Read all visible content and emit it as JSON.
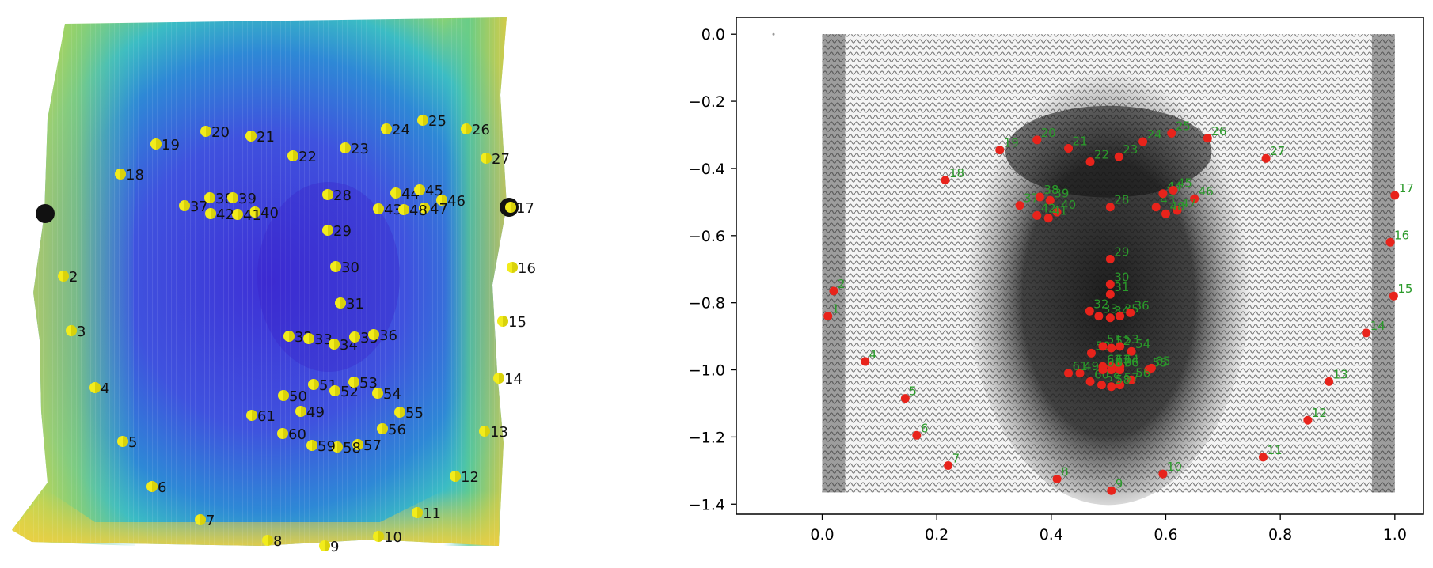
{
  "mesh_render": {
    "colors": {
      "center": "#3b3fd8",
      "mid": "#2f8fd8",
      "edge": "#3fc4c0",
      "outer": "#f4d83a",
      "marker_fill": "#f2ec1c",
      "marker_dark": "#111111"
    },
    "landmark_labels": [
      "2",
      "3",
      "4",
      "5",
      "6",
      "7",
      "8",
      "9",
      "10",
      "11",
      "12",
      "13",
      "14",
      "15",
      "16",
      "17",
      "18",
      "19",
      "20",
      "21",
      "22",
      "23",
      "24",
      "25",
      "26",
      "27",
      "28",
      "29",
      "30",
      "31",
      "32",
      "33",
      "34",
      "35",
      "36",
      "37",
      "38",
      "39",
      "40",
      "41",
      "42",
      "43",
      "44",
      "45",
      "46",
      "47",
      "48",
      "49",
      "50",
      "51",
      "52",
      "53",
      "54",
      "55",
      "56",
      "57",
      "58",
      "59",
      "60",
      "61"
    ]
  },
  "chart_data": {
    "type": "scatter",
    "xlim": [
      -0.15,
      1.05
    ],
    "ylim": [
      -1.43,
      0.05
    ],
    "x_ticks": [
      0.0,
      0.2,
      0.4,
      0.6,
      0.8,
      1.0
    ],
    "x_tick_labels": [
      "0.0",
      "0.2",
      "0.4",
      "0.6",
      "0.8",
      "1.0"
    ],
    "y_ticks": [
      0.0,
      -0.2,
      -0.4,
      -0.6,
      -0.8,
      -1.0,
      -1.2,
      -1.4
    ],
    "y_tick_labels": [
      "0.0",
      "−0.2",
      "−0.4",
      "−0.6",
      "−0.8",
      "−1.0",
      "−1.2",
      "−1.4"
    ],
    "grid": false,
    "marker_color": "#e8231b",
    "label_color": "#2a9a2a",
    "points": [
      {
        "label": "2",
        "x": 0.02,
        "y": -0.765
      },
      {
        "label": "1",
        "x": 0.01,
        "y": -0.84
      },
      {
        "label": "4",
        "x": 0.075,
        "y": -0.975
      },
      {
        "label": "5",
        "x": 0.145,
        "y": -1.085
      },
      {
        "label": "6",
        "x": 0.165,
        "y": -1.195
      },
      {
        "label": "7",
        "x": 0.22,
        "y": -1.285
      },
      {
        "label": "8",
        "x": 0.41,
        "y": -1.325
      },
      {
        "label": "9",
        "x": 0.505,
        "y": -1.36
      },
      {
        "label": "10",
        "x": 0.595,
        "y": -1.31
      },
      {
        "label": "11",
        "x": 0.77,
        "y": -1.26
      },
      {
        "label": "12",
        "x": 0.848,
        "y": -1.15
      },
      {
        "label": "13",
        "x": 0.885,
        "y": -1.035
      },
      {
        "label": "14",
        "x": 0.95,
        "y": -0.89
      },
      {
        "label": "15",
        "x": 0.998,
        "y": -0.78
      },
      {
        "label": "16",
        "x": 0.992,
        "y": -0.62
      },
      {
        "label": "17",
        "x": 1.0,
        "y": -0.48
      },
      {
        "label": "18",
        "x": 0.215,
        "y": -0.435
      },
      {
        "label": "19",
        "x": 0.31,
        "y": -0.345
      },
      {
        "label": "20",
        "x": 0.375,
        "y": -0.315
      },
      {
        "label": "21",
        "x": 0.43,
        "y": -0.34
      },
      {
        "label": "22",
        "x": 0.468,
        "y": -0.38
      },
      {
        "label": "23",
        "x": 0.518,
        "y": -0.365
      },
      {
        "label": "24",
        "x": 0.56,
        "y": -0.32
      },
      {
        "label": "25",
        "x": 0.61,
        "y": -0.295
      },
      {
        "label": "26",
        "x": 0.673,
        "y": -0.31
      },
      {
        "label": "27",
        "x": 0.775,
        "y": -0.37
      },
      {
        "label": "28",
        "x": 0.503,
        "y": -0.515
      },
      {
        "label": "29",
        "x": 0.503,
        "y": -0.67
      },
      {
        "label": "30",
        "x": 0.503,
        "y": -0.745
      },
      {
        "label": "31",
        "x": 0.503,
        "y": -0.775
      },
      {
        "label": "32",
        "x": 0.467,
        "y": -0.825
      },
      {
        "label": "33",
        "x": 0.483,
        "y": -0.84
      },
      {
        "label": "34",
        "x": 0.503,
        "y": -0.845
      },
      {
        "label": "35",
        "x": 0.52,
        "y": -0.84
      },
      {
        "label": "36",
        "x": 0.538,
        "y": -0.83
      },
      {
        "label": "37",
        "x": 0.345,
        "y": -0.51
      },
      {
        "label": "38",
        "x": 0.38,
        "y": -0.485
      },
      {
        "label": "39",
        "x": 0.398,
        "y": -0.495
      },
      {
        "label": "40",
        "x": 0.41,
        "y": -0.53
      },
      {
        "label": "41",
        "x": 0.395,
        "y": -0.548
      },
      {
        "label": "42",
        "x": 0.375,
        "y": -0.54
      },
      {
        "label": "43",
        "x": 0.583,
        "y": -0.515
      },
      {
        "label": "44",
        "x": 0.595,
        "y": -0.475
      },
      {
        "label": "45",
        "x": 0.613,
        "y": -0.465
      },
      {
        "label": "46",
        "x": 0.65,
        "y": -0.49
      },
      {
        "label": "47",
        "x": 0.62,
        "y": -0.525
      },
      {
        "label": "48",
        "x": 0.6,
        "y": -0.535
      },
      {
        "label": "49",
        "x": 0.45,
        "y": -1.01
      },
      {
        "label": "50",
        "x": 0.47,
        "y": -0.95
      },
      {
        "label": "51",
        "x": 0.49,
        "y": -0.93
      },
      {
        "label": "52",
        "x": 0.505,
        "y": -0.935
      },
      {
        "label": "53",
        "x": 0.52,
        "y": -0.93
      },
      {
        "label": "54",
        "x": 0.54,
        "y": -0.945
      },
      {
        "label": "55",
        "x": 0.57,
        "y": -1.0
      },
      {
        "label": "56",
        "x": 0.54,
        "y": -1.03
      },
      {
        "label": "57",
        "x": 0.52,
        "y": -1.045
      },
      {
        "label": "58",
        "x": 0.505,
        "y": -1.05
      },
      {
        "label": "59",
        "x": 0.488,
        "y": -1.045
      },
      {
        "label": "60",
        "x": 0.468,
        "y": -1.035
      },
      {
        "label": "61",
        "x": 0.43,
        "y": -1.01
      },
      {
        "label": "62",
        "x": 0.49,
        "y": -0.99
      },
      {
        "label": "63",
        "x": 0.505,
        "y": -0.99
      },
      {
        "label": "64",
        "x": 0.52,
        "y": -0.99
      },
      {
        "label": "65",
        "x": 0.575,
        "y": -0.995
      },
      {
        "label": "66",
        "x": 0.52,
        "y": -1.0
      },
      {
        "label": "67",
        "x": 0.505,
        "y": -1.0
      },
      {
        "label": "68",
        "x": 0.49,
        "y": -1.0
      }
    ]
  }
}
